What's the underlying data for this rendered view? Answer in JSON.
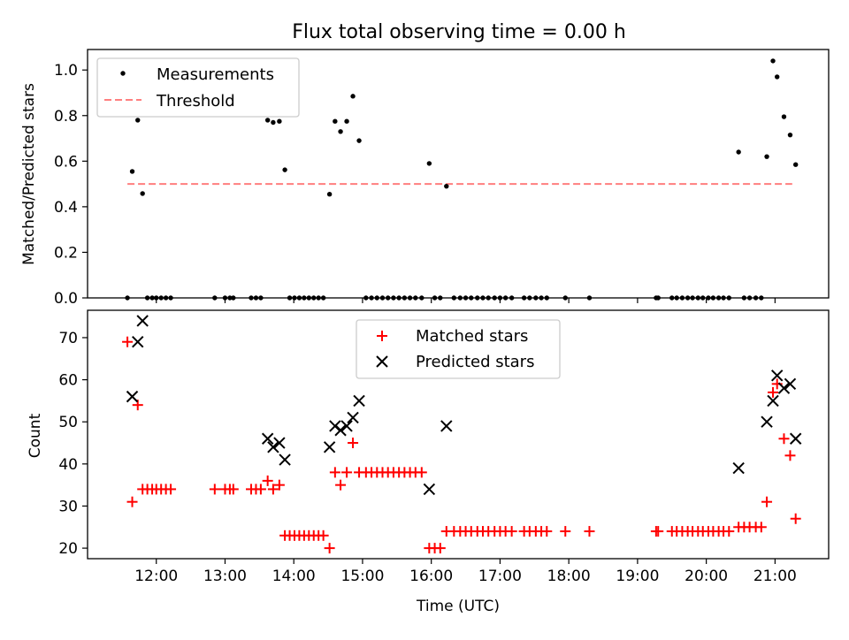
{
  "figure": {
    "title": "Flux total observing time = 0.00 h",
    "xlabel": "Time (UTC)"
  },
  "colors": {
    "measurements": "#000000",
    "threshold": "#ff7f7f",
    "matched": "#ff0000",
    "predicted": "#000000"
  },
  "chart_data": [
    {
      "type": "scatter",
      "ylabel": "Matched/Predicted stars",
      "xlim_hours": [
        11.0,
        21.78
      ],
      "ylim": [
        0,
        1.09
      ],
      "yticks": [
        0.0,
        0.2,
        0.4,
        0.6,
        0.8,
        1.0
      ],
      "ytick_labels": [
        "0.0",
        "0.2",
        "0.4",
        "0.6",
        "0.8",
        "1.0"
      ],
      "legend_position": "top-left",
      "threshold": 0.5,
      "threshold_span_hours": [
        11.58,
        21.25
      ],
      "series": [
        {
          "name": "Measurements",
          "marker": "dot",
          "points": [
            [
              11.58,
              0.0
            ],
            [
              11.65,
              0.555
            ],
            [
              11.73,
              0.78
            ],
            [
              11.8,
              0.458
            ],
            [
              11.87,
              0.0
            ],
            [
              11.94,
              0.0
            ],
            [
              12.0,
              0.0
            ],
            [
              12.07,
              0.0
            ],
            [
              12.14,
              0.0
            ],
            [
              12.21,
              0.0
            ],
            [
              12.85,
              0.0
            ],
            [
              13.0,
              0.0
            ],
            [
              13.07,
              0.0
            ],
            [
              13.12,
              0.0
            ],
            [
              13.38,
              0.0
            ],
            [
              13.45,
              0.0
            ],
            [
              13.52,
              0.0
            ],
            [
              13.62,
              0.78
            ],
            [
              13.7,
              0.77
            ],
            [
              13.79,
              0.775
            ],
            [
              13.87,
              0.562
            ],
            [
              13.94,
              0.0
            ],
            [
              14.01,
              0.0
            ],
            [
              14.08,
              0.0
            ],
            [
              14.15,
              0.0
            ],
            [
              14.22,
              0.0
            ],
            [
              14.29,
              0.0
            ],
            [
              14.36,
              0.0
            ],
            [
              14.43,
              0.0
            ],
            [
              14.52,
              0.455
            ],
            [
              14.6,
              0.775
            ],
            [
              14.68,
              0.73
            ],
            [
              14.77,
              0.775
            ],
            [
              14.86,
              0.885
            ],
            [
              14.95,
              0.69
            ],
            [
              15.05,
              0.0
            ],
            [
              15.13,
              0.0
            ],
            [
              15.21,
              0.0
            ],
            [
              15.29,
              0.0
            ],
            [
              15.37,
              0.0
            ],
            [
              15.45,
              0.0
            ],
            [
              15.53,
              0.0
            ],
            [
              15.61,
              0.0
            ],
            [
              15.69,
              0.0
            ],
            [
              15.77,
              0.0
            ],
            [
              15.86,
              0.0
            ],
            [
              15.97,
              0.59
            ],
            [
              16.05,
              0.0
            ],
            [
              16.13,
              0.0
            ],
            [
              16.22,
              0.49
            ],
            [
              16.33,
              0.0
            ],
            [
              16.42,
              0.0
            ],
            [
              16.5,
              0.0
            ],
            [
              16.58,
              0.0
            ],
            [
              16.67,
              0.0
            ],
            [
              16.75,
              0.0
            ],
            [
              16.83,
              0.0
            ],
            [
              16.92,
              0.0
            ],
            [
              17.0,
              0.0
            ],
            [
              17.08,
              0.0
            ],
            [
              17.17,
              0.0
            ],
            [
              17.35,
              0.0
            ],
            [
              17.43,
              0.0
            ],
            [
              17.52,
              0.0
            ],
            [
              17.6,
              0.0
            ],
            [
              17.68,
              0.0
            ],
            [
              17.95,
              0.0
            ],
            [
              18.3,
              0.0
            ],
            [
              19.27,
              0.0
            ],
            [
              19.3,
              0.0
            ],
            [
              19.5,
              0.0
            ],
            [
              19.57,
              0.0
            ],
            [
              19.65,
              0.0
            ],
            [
              19.73,
              0.0
            ],
            [
              19.8,
              0.0
            ],
            [
              19.88,
              0.0
            ],
            [
              19.95,
              0.0
            ],
            [
              20.03,
              0.0
            ],
            [
              20.1,
              0.0
            ],
            [
              20.18,
              0.0
            ],
            [
              20.25,
              0.0
            ],
            [
              20.33,
              0.0
            ],
            [
              20.47,
              0.64
            ],
            [
              20.55,
              0.0
            ],
            [
              20.63,
              0.0
            ],
            [
              20.72,
              0.0
            ],
            [
              20.8,
              0.0
            ],
            [
              20.88,
              0.62
            ],
            [
              20.97,
              1.04
            ],
            [
              21.03,
              0.97
            ],
            [
              21.13,
              0.795
            ],
            [
              21.22,
              0.715
            ],
            [
              21.3,
              0.585
            ]
          ]
        },
        {
          "name": "Threshold",
          "marker": "dashed-line"
        }
      ]
    },
    {
      "type": "scatter",
      "ylabel": "Count",
      "xlim_hours": [
        11.0,
        21.78
      ],
      "ylim": [
        17.5,
        76.5
      ],
      "yticks": [
        20,
        30,
        40,
        50,
        60,
        70
      ],
      "ytick_labels": [
        "20",
        "30",
        "40",
        "50",
        "60",
        "70"
      ],
      "xticks_hours": [
        12,
        13,
        14,
        15,
        16,
        17,
        18,
        19,
        20,
        21
      ],
      "xtick_labels": [
        "12:00",
        "13:00",
        "14:00",
        "15:00",
        "16:00",
        "17:00",
        "18:00",
        "19:00",
        "20:00",
        "21:00"
      ],
      "legend_position": "top-center",
      "series": [
        {
          "name": "Matched stars",
          "marker": "plus",
          "points": [
            [
              11.58,
              69
            ],
            [
              11.65,
              31
            ],
            [
              11.73,
              54
            ],
            [
              11.8,
              34
            ],
            [
              11.87,
              34
            ],
            [
              11.94,
              34
            ],
            [
              12.0,
              34
            ],
            [
              12.07,
              34
            ],
            [
              12.14,
              34
            ],
            [
              12.21,
              34
            ],
            [
              12.85,
              34
            ],
            [
              13.0,
              34
            ],
            [
              13.07,
              34
            ],
            [
              13.12,
              34
            ],
            [
              13.38,
              34
            ],
            [
              13.45,
              34
            ],
            [
              13.52,
              34
            ],
            [
              13.62,
              36
            ],
            [
              13.7,
              34
            ],
            [
              13.79,
              35
            ],
            [
              13.87,
              23
            ],
            [
              13.94,
              23
            ],
            [
              14.01,
              23
            ],
            [
              14.08,
              23
            ],
            [
              14.15,
              23
            ],
            [
              14.22,
              23
            ],
            [
              14.29,
              23
            ],
            [
              14.36,
              23
            ],
            [
              14.43,
              23
            ],
            [
              14.52,
              20
            ],
            [
              14.6,
              38
            ],
            [
              14.68,
              35
            ],
            [
              14.77,
              38
            ],
            [
              14.86,
              45
            ],
            [
              14.95,
              38
            ],
            [
              15.05,
              38
            ],
            [
              15.13,
              38
            ],
            [
              15.21,
              38
            ],
            [
              15.29,
              38
            ],
            [
              15.37,
              38
            ],
            [
              15.45,
              38
            ],
            [
              15.53,
              38
            ],
            [
              15.61,
              38
            ],
            [
              15.69,
              38
            ],
            [
              15.77,
              38
            ],
            [
              15.86,
              38
            ],
            [
              15.97,
              20
            ],
            [
              16.05,
              20
            ],
            [
              16.13,
              20
            ],
            [
              16.22,
              24
            ],
            [
              16.33,
              24
            ],
            [
              16.42,
              24
            ],
            [
              16.5,
              24
            ],
            [
              16.58,
              24
            ],
            [
              16.67,
              24
            ],
            [
              16.75,
              24
            ],
            [
              16.83,
              24
            ],
            [
              16.92,
              24
            ],
            [
              17.0,
              24
            ],
            [
              17.08,
              24
            ],
            [
              17.17,
              24
            ],
            [
              17.35,
              24
            ],
            [
              17.43,
              24
            ],
            [
              17.52,
              24
            ],
            [
              17.6,
              24
            ],
            [
              17.68,
              24
            ],
            [
              17.95,
              24
            ],
            [
              18.3,
              24
            ],
            [
              19.27,
              24
            ],
            [
              19.3,
              24
            ],
            [
              19.5,
              24
            ],
            [
              19.57,
              24
            ],
            [
              19.65,
              24
            ],
            [
              19.73,
              24
            ],
            [
              19.8,
              24
            ],
            [
              19.88,
              24
            ],
            [
              19.95,
              24
            ],
            [
              20.03,
              24
            ],
            [
              20.1,
              24
            ],
            [
              20.18,
              24
            ],
            [
              20.25,
              24
            ],
            [
              20.33,
              24
            ],
            [
              20.47,
              25
            ],
            [
              20.55,
              25
            ],
            [
              20.63,
              25
            ],
            [
              20.72,
              25
            ],
            [
              20.8,
              25
            ],
            [
              20.88,
              31
            ],
            [
              20.97,
              57
            ],
            [
              21.03,
              59
            ],
            [
              21.13,
              46
            ],
            [
              21.22,
              42
            ],
            [
              21.3,
              27
            ]
          ]
        },
        {
          "name": "Predicted stars",
          "marker": "x",
          "points": [
            [
              11.65,
              56
            ],
            [
              11.73,
              69
            ],
            [
              11.8,
              74
            ],
            [
              13.62,
              46
            ],
            [
              13.7,
              44
            ],
            [
              13.79,
              45
            ],
            [
              13.87,
              41
            ],
            [
              14.52,
              44
            ],
            [
              14.6,
              49
            ],
            [
              14.68,
              48
            ],
            [
              14.77,
              49
            ],
            [
              14.86,
              51
            ],
            [
              14.95,
              55
            ],
            [
              15.97,
              34
            ],
            [
              16.22,
              49
            ],
            [
              20.47,
              39
            ],
            [
              20.88,
              50
            ],
            [
              20.97,
              55
            ],
            [
              21.03,
              61
            ],
            [
              21.13,
              58
            ],
            [
              21.22,
              59
            ],
            [
              21.3,
              46
            ]
          ]
        }
      ]
    }
  ]
}
